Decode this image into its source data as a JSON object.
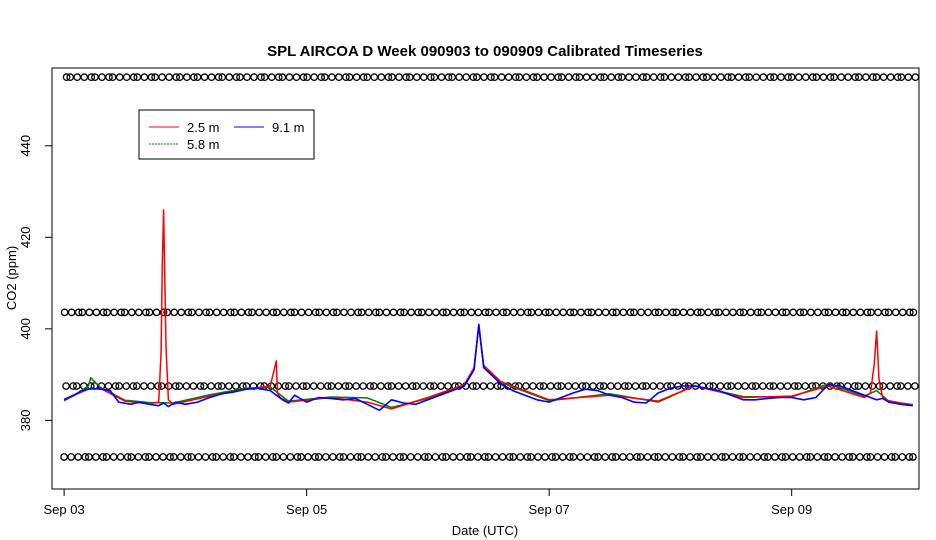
{
  "chart_data": {
    "type": "line",
    "title": "SPL AIRCOA D  Week 090903 to 090909  Calibrated Timeseries",
    "xlabel": "Date (UTC)",
    "ylabel": "CO2 (ppm)",
    "xlim": [
      -0.1,
      7.05
    ],
    "ylim": [
      365,
      457
    ],
    "x_ticks": [
      {
        "value": 0,
        "label": "Sep 03"
      },
      {
        "value": 2,
        "label": "Sep 05"
      },
      {
        "value": 4,
        "label": "Sep 07"
      },
      {
        "value": 6,
        "label": "Sep 09"
      }
    ],
    "y_ticks": [
      380,
      400,
      420,
      440
    ],
    "legend": {
      "placement": "top-left",
      "entries": [
        {
          "name": "2.5 m",
          "color": "#ff0000"
        },
        {
          "name": "9.1 m",
          "color": "#0000ff"
        },
        {
          "name": "5.8 m",
          "color": "#008000"
        }
      ]
    },
    "series": [
      {
        "name": "9.1 m",
        "color": "#0000ff",
        "x": [
          0.0,
          0.08,
          0.15,
          0.22,
          0.3,
          0.38,
          0.45,
          0.55,
          0.62,
          0.7,
          0.78,
          0.82,
          0.86,
          0.92,
          1.0,
          1.1,
          1.2,
          1.3,
          1.4,
          1.5,
          1.6,
          1.7,
          1.8,
          1.85,
          1.9,
          2.0,
          2.1,
          2.2,
          2.3,
          2.4,
          2.5,
          2.6,
          2.7,
          2.8,
          2.9,
          3.0,
          3.1,
          3.2,
          3.3,
          3.38,
          3.42,
          3.46,
          3.52,
          3.6,
          3.7,
          3.8,
          3.9,
          4.0,
          4.1,
          4.2,
          4.3,
          4.4,
          4.5,
          4.6,
          4.7,
          4.8,
          4.9,
          5.0,
          5.1,
          5.2,
          5.3,
          5.4,
          5.5,
          5.6,
          5.7,
          5.8,
          5.9,
          6.0,
          6.1,
          6.2,
          6.3,
          6.4,
          6.5,
          6.6,
          6.65,
          6.7,
          6.75,
          6.8,
          6.9,
          7.0
        ],
        "values": [
          384.5,
          385.5,
          386.5,
          387.0,
          386.8,
          386.5,
          384.0,
          383.5,
          384.0,
          383.5,
          383.2,
          383.8,
          383.0,
          384.0,
          383.5,
          384.0,
          385.0,
          385.8,
          386.2,
          386.8,
          387.0,
          386.5,
          384.5,
          383.8,
          385.5,
          384.0,
          385.0,
          384.8,
          384.5,
          384.8,
          383.5,
          382.2,
          384.5,
          383.8,
          383.5,
          384.5,
          385.5,
          386.5,
          387.5,
          391.0,
          401.0,
          391.5,
          390.0,
          388.0,
          386.5,
          385.5,
          384.5,
          384.0,
          385.0,
          386.0,
          386.8,
          386.5,
          385.5,
          385.0,
          384.0,
          383.8,
          386.0,
          387.0,
          387.5,
          387.5,
          387.0,
          386.5,
          385.5,
          384.5,
          384.5,
          384.8,
          385.0,
          385.0,
          384.5,
          385.0,
          387.8,
          387.5,
          386.5,
          385.5,
          385.0,
          384.5,
          384.8,
          384.0,
          383.5,
          383.2
        ]
      },
      {
        "name": "2.5 m",
        "color": "#ff0000",
        "x": [
          0.0,
          0.1,
          0.2,
          0.3,
          0.5,
          0.7,
          0.78,
          0.8,
          0.81,
          0.82,
          0.84,
          0.86,
          0.9,
          1.2,
          1.5,
          1.7,
          1.75,
          1.76,
          1.78,
          1.85,
          2.2,
          2.5,
          2.7,
          3.0,
          3.3,
          3.38,
          3.42,
          3.46,
          3.52,
          3.6,
          4.0,
          4.5,
          4.9,
          5.2,
          5.6,
          6.0,
          6.3,
          6.6,
          6.65,
          6.68,
          6.7,
          6.72,
          6.75,
          6.8,
          7.0
        ],
        "values": [
          384.3,
          385.7,
          386.8,
          387.0,
          384.2,
          383.6,
          384.0,
          395.0,
          414.0,
          426.0,
          396.0,
          384.5,
          383.5,
          385.3,
          386.8,
          387.5,
          393.0,
          386.0,
          385.0,
          384.0,
          385.0,
          384.0,
          382.5,
          385.0,
          387.8,
          391.5,
          400.5,
          392.0,
          390.5,
          388.5,
          384.5,
          385.5,
          384.2,
          387.5,
          385.0,
          385.3,
          387.5,
          385.0,
          386.0,
          392.0,
          399.5,
          389.0,
          385.0,
          384.3,
          383.3
        ]
      },
      {
        "name": "5.8 m",
        "color": "#008000",
        "x": [
          0.0,
          0.1,
          0.2,
          0.22,
          0.3,
          0.5,
          0.7,
          0.9,
          1.2,
          1.5,
          1.7,
          1.85,
          2.2,
          2.5,
          2.7,
          3.0,
          3.3,
          3.38,
          3.42,
          3.46,
          3.52,
          3.6,
          4.0,
          4.5,
          4.9,
          5.2,
          5.6,
          6.0,
          6.3,
          6.6,
          6.7,
          6.8,
          7.0
        ],
        "values": [
          384.6,
          385.8,
          387.5,
          389.3,
          387.2,
          384.4,
          383.9,
          383.8,
          385.6,
          387.0,
          387.3,
          384.2,
          385.1,
          384.9,
          382.8,
          384.8,
          387.7,
          391.2,
          400.8,
          391.8,
          390.3,
          388.3,
          384.3,
          385.8,
          384.0,
          387.6,
          385.2,
          385.1,
          388.0,
          385.3,
          386.5,
          384.2,
          383.4
        ]
      },
      {
        "name": "calibration points",
        "marker": "open-circle",
        "levels": [
          372.0,
          387.5,
          403.6,
          455.0
        ],
        "x_start": 0.0,
        "x_end": 7.0,
        "spacing_days": 0.05
      }
    ]
  }
}
